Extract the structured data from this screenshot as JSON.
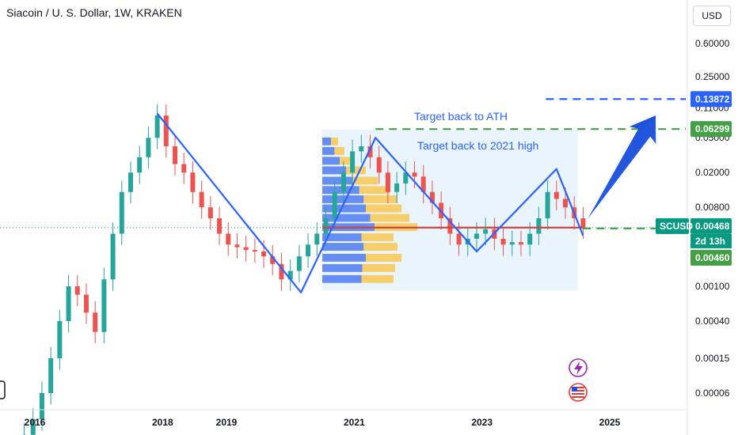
{
  "header": {
    "title": "Siacoin / U. S. Dollar, 1W, KRAKEN",
    "currency": "USD"
  },
  "chart_data": {
    "type": "candlestick",
    "symbol": "SCUSD",
    "interval": "1W",
    "exchange": "KRAKEN",
    "y_scale": "log",
    "y_ticks": [
      "0.60000",
      "0.25000",
      "0.11000",
      "0.05000",
      "0.02000",
      "0.00800",
      "0.00100",
      "0.00040",
      "0.00015",
      "0.00006"
    ],
    "x_ticks": [
      "2016",
      "2018",
      "2019",
      "2021",
      "2023",
      "2025"
    ],
    "price_tags": [
      {
        "label": "0.13872",
        "value": 0.13872,
        "color": "#2962ff"
      },
      {
        "label": "0.06299",
        "value": 0.06299,
        "color": "#43a047"
      },
      {
        "label": "0.00468",
        "value": 0.00468,
        "color": "#089981"
      },
      {
        "label": "2d 13h",
        "value": null,
        "color": "#089981"
      },
      {
        "label": "0.00460",
        "value": 0.0046,
        "color": "#43a047"
      }
    ],
    "symbol_tag": "SCUSD",
    "annotations": [
      "Target back to ATH",
      "Target back to 2021 high"
    ],
    "zigzag": [
      {
        "x": "2017-12",
        "y": 0.095
      },
      {
        "x": "2020-03",
        "y": 0.00085
      },
      {
        "x": "2021-05",
        "y": 0.05
      },
      {
        "x": "2022-12",
        "y": 0.0025
      },
      {
        "x": "2024-03",
        "y": 0.022
      },
      {
        "x": "2024-08",
        "y": 0.0038
      }
    ],
    "levels": [
      {
        "name": "ATH target",
        "value": 0.13872,
        "style": "dashed",
        "color": "#2962ff"
      },
      {
        "name": "2021 high",
        "value": 0.06299,
        "style": "dashed",
        "color": "#43a047"
      },
      {
        "name": "current",
        "value": 0.0046,
        "style": "dashed",
        "color": "#43a047"
      },
      {
        "name": "point of control",
        "value": 0.0047,
        "style": "solid",
        "color": "#e53935"
      }
    ],
    "candles_close": [
      2e-05,
      3e-05,
      6e-05,
      0.00015,
      0.0004,
      0.001,
      0.0008,
      0.0005,
      0.0003,
      0.0012,
      0.004,
      0.012,
      0.02,
      0.03,
      0.05,
      0.09,
      0.04,
      0.025,
      0.02,
      0.012,
      0.008,
      0.006,
      0.004,
      0.003,
      0.0028,
      0.0026,
      0.0025,
      0.0022,
      0.0018,
      0.0012,
      0.0015,
      0.0022,
      0.003,
      0.004,
      0.006,
      0.012,
      0.02,
      0.035,
      0.04,
      0.03,
      0.02,
      0.012,
      0.015,
      0.02,
      0.018,
      0.012,
      0.009,
      0.006,
      0.004,
      0.003,
      0.0035,
      0.004,
      0.0045,
      0.0035,
      0.003,
      0.0032,
      0.003,
      0.004,
      0.006,
      0.012,
      0.01,
      0.008,
      0.006,
      0.0047
    ]
  }
}
